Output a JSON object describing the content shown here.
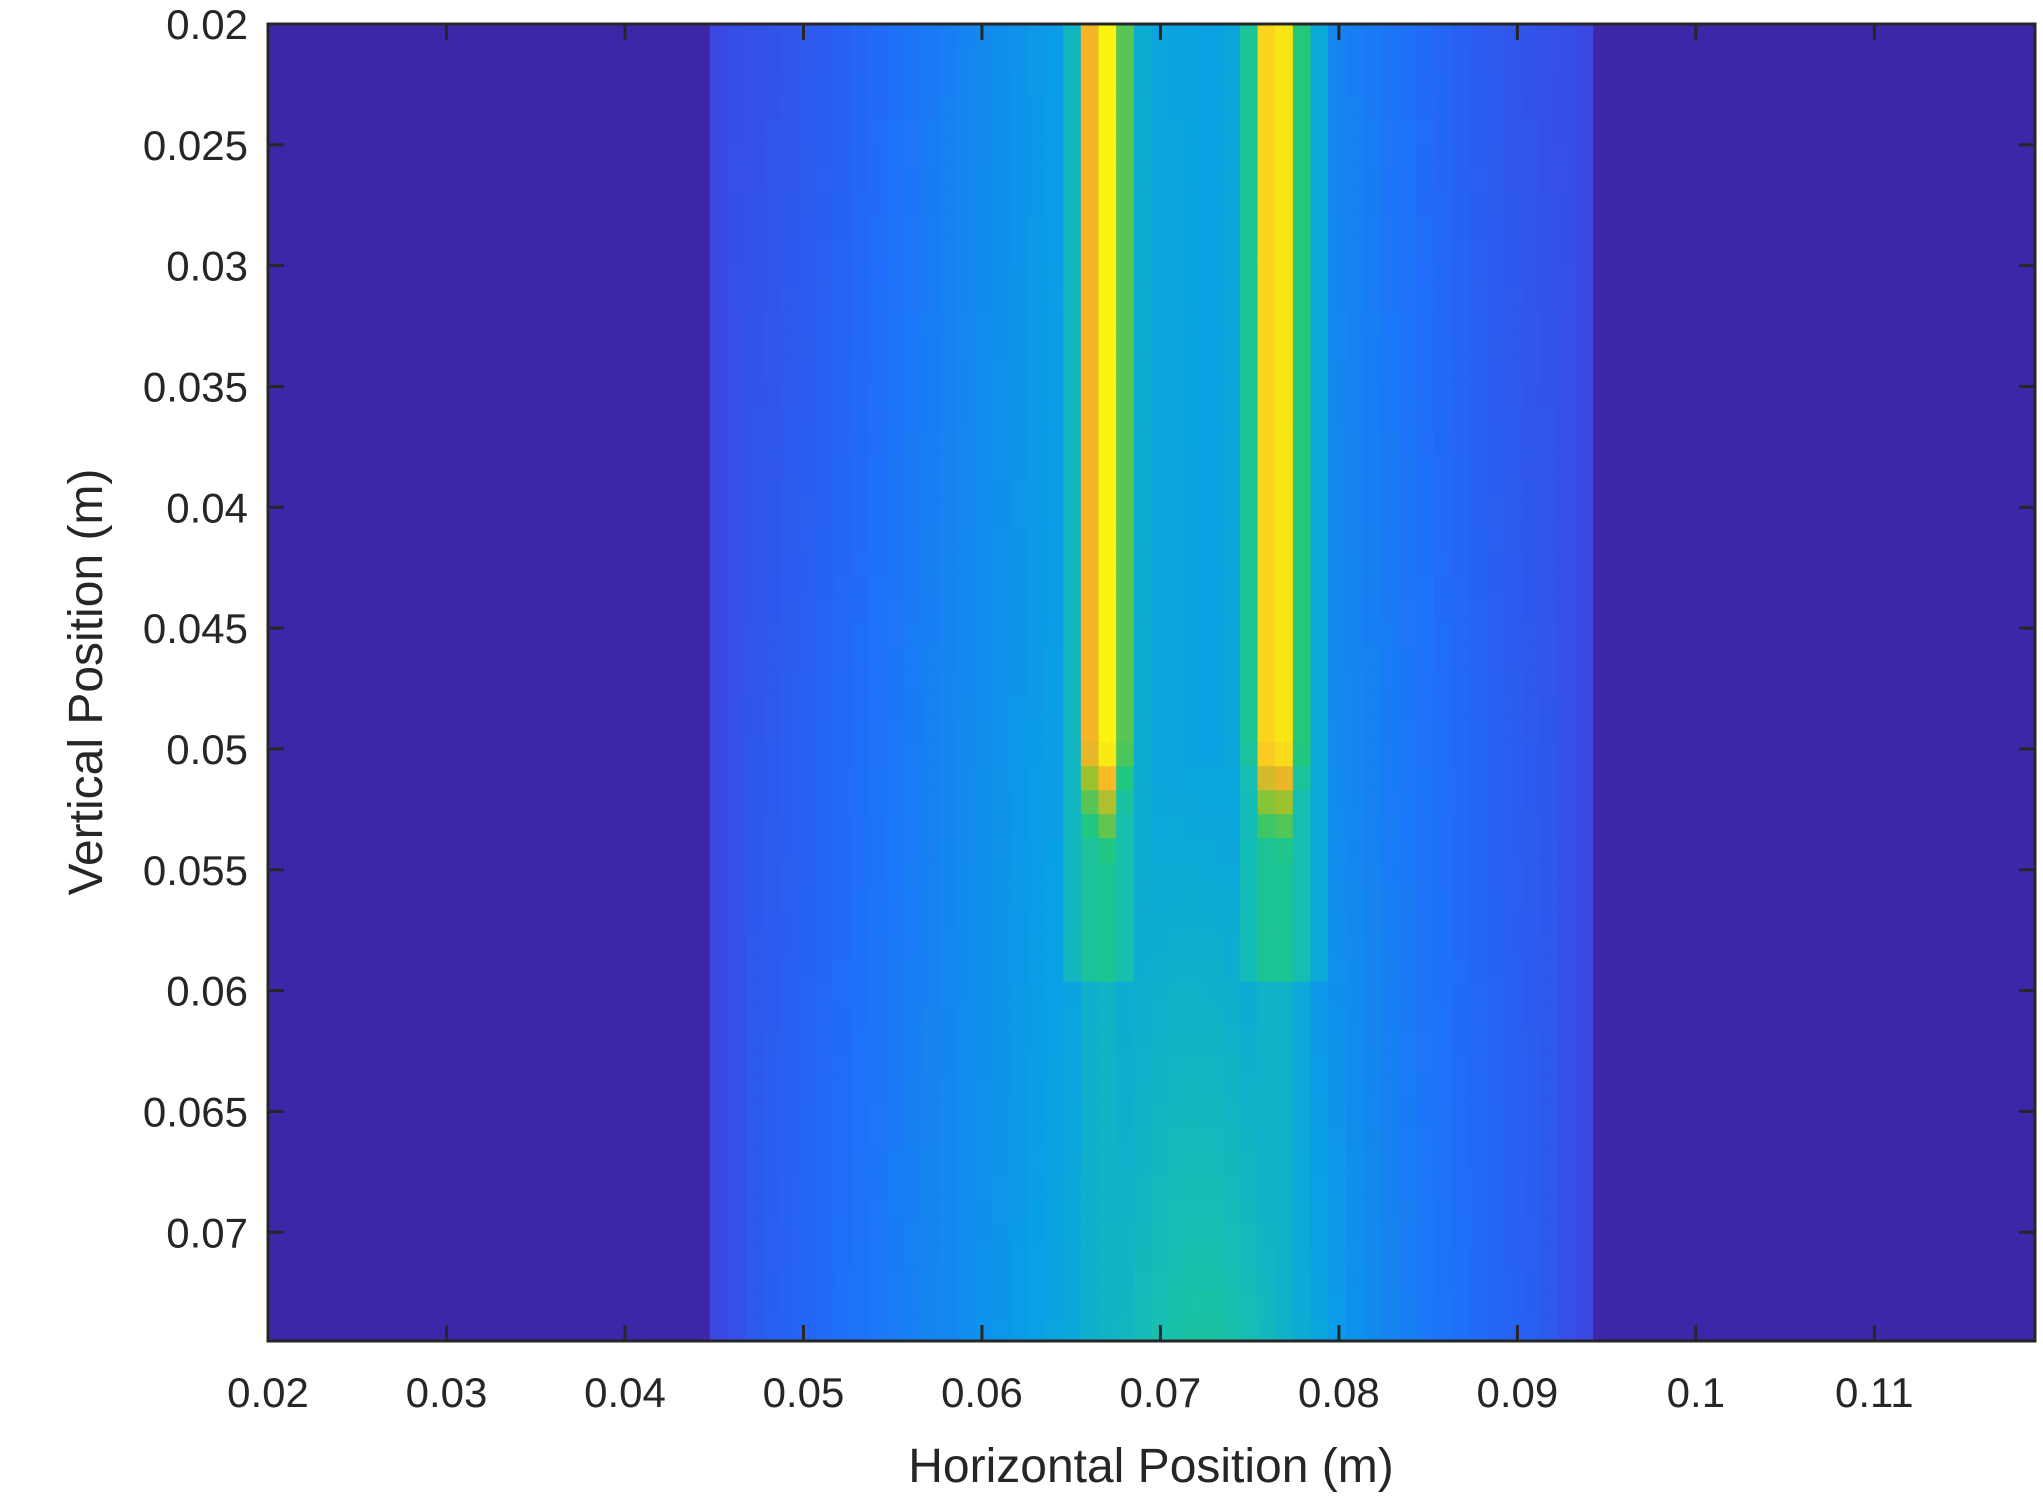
{
  "chart_data": {
    "type": "heatmap",
    "title": "",
    "xlabel": "Horizontal Position (m)",
    "ylabel": "Vertical Position (m)",
    "xlim": [
      0.02,
      0.119
    ],
    "ylim": [
      0.02,
      0.0745
    ],
    "y_reversed": true,
    "grid": false,
    "legend": "none",
    "colormap": "parula",
    "x_ticks": [
      0.02,
      0.03,
      0.04,
      0.05,
      0.06,
      0.07,
      0.08,
      0.09,
      0.1,
      0.11
    ],
    "x_tick_labels": [
      "0.02",
      "0.03",
      "0.04",
      "0.05",
      "0.06",
      "0.07",
      "0.08",
      "0.09",
      "0.1",
      "0.11"
    ],
    "y_ticks": [
      0.02,
      0.025,
      0.03,
      0.035,
      0.04,
      0.045,
      0.05,
      0.055,
      0.06,
      0.065,
      0.07
    ],
    "y_tick_labels": [
      "0.02",
      "0.025",
      "0.03",
      "0.035",
      "0.04",
      "0.045",
      "0.05",
      "0.055",
      "0.06",
      "0.065",
      "0.07"
    ],
    "background_value": 0,
    "nonzero_x_range": [
      0.0445,
      0.0945
    ],
    "plume_peaks": [
      {
        "x": 0.0668,
        "width": 0.0021,
        "peak_value": 1.0,
        "fade_start_y": 0.05,
        "fade_end_y": 0.059
      },
      {
        "x": 0.0765,
        "width": 0.0022,
        "peak_value": 1.0,
        "fade_start_y": 0.05,
        "fade_end_y": 0.059
      }
    ],
    "value_range": [
      0,
      1
    ],
    "colors": {
      "background": "#3f1ea6",
      "low": "#3b2fd0",
      "mid_blue": "#1a78f5",
      "mid_green": "#18c57a",
      "high_orange": "#fbb227",
      "peak": "#f9fb0e",
      "axis": "#262626"
    }
  }
}
